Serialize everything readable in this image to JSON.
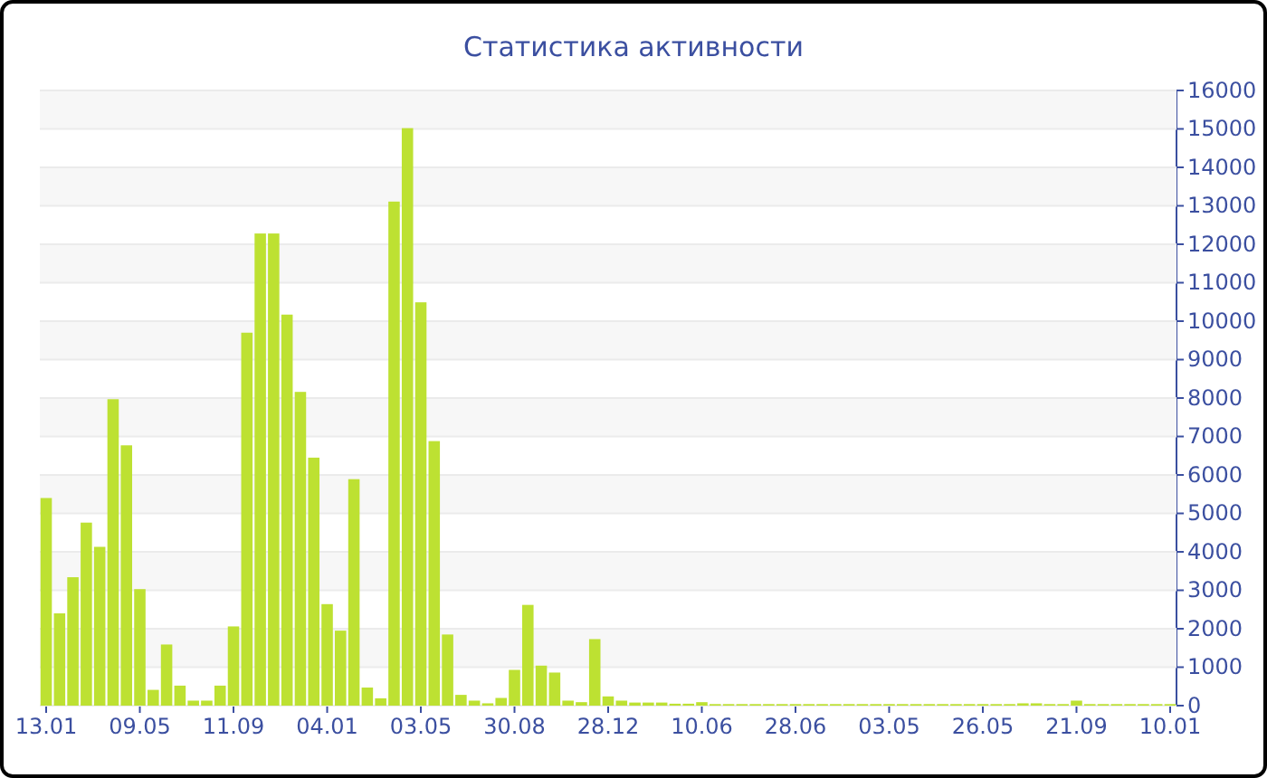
{
  "chart_data": {
    "type": "bar",
    "title": "Статистика активности",
    "categories": [
      "13.01",
      null,
      null,
      null,
      null,
      null,
      null,
      "09.05",
      null,
      null,
      null,
      null,
      null,
      null,
      "11.09",
      null,
      null,
      null,
      null,
      null,
      null,
      "04.01",
      null,
      null,
      null,
      null,
      null,
      null,
      "03.05",
      null,
      null,
      null,
      null,
      null,
      null,
      "30.08",
      null,
      null,
      null,
      null,
      null,
      null,
      "28.12",
      null,
      null,
      null,
      null,
      null,
      null,
      "10.06",
      null,
      null,
      null,
      null,
      null,
      null,
      "28.06",
      null,
      null,
      null,
      null,
      null,
      null,
      "03.05",
      null,
      null,
      null,
      null,
      null,
      null,
      "26.05",
      null,
      null,
      null,
      null,
      null,
      null,
      "21.09",
      null,
      null,
      null,
      null,
      null,
      null,
      "10.01"
    ],
    "values": [
      5400,
      2400,
      3340,
      4760,
      4130,
      7970,
      6770,
      3030,
      410,
      1590,
      520,
      130,
      130,
      520,
      2060,
      9700,
      12280,
      12280,
      10170,
      8160,
      6450,
      2640,
      1950,
      5890,
      470,
      190,
      13110,
      15020,
      10490,
      6880,
      1850,
      280,
      130,
      60,
      200,
      930,
      2620,
      1040,
      860,
      130,
      90,
      1730,
      240,
      130,
      80,
      80,
      80,
      50,
      50,
      90,
      40,
      40,
      40,
      40,
      40,
      40,
      40,
      40,
      40,
      40,
      40,
      40,
      40,
      40,
      40,
      40,
      40,
      40,
      40,
      40,
      40,
      40,
      40,
      60,
      60,
      40,
      40,
      130,
      40,
      40,
      40,
      40,
      40,
      40,
      40
    ],
    "color": "#bde132",
    "ylim": [
      0,
      16000
    ],
    "yticks": [
      0,
      1000,
      2000,
      3000,
      4000,
      5000,
      6000,
      7000,
      8000,
      9000,
      10000,
      11000,
      12000,
      13000,
      14000,
      15000,
      16000
    ],
    "grid": "y"
  }
}
